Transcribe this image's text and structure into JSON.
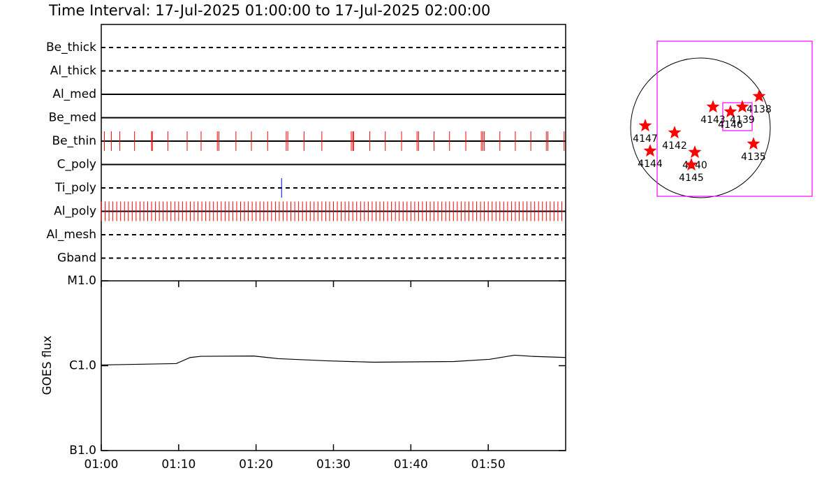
{
  "chart_data": [
    {
      "type": "timeline",
      "title": "Time Interval: 17-Jul-2025 01:00:00 to 17-Jul-2025 02:00:00",
      "xlim": [
        0,
        60
      ],
      "categories": [
        "Be_thick",
        "Al_thick",
        "Al_med",
        "Be_med",
        "Be_thin",
        "C_poly",
        "Ti_poly",
        "Al_poly",
        "Al_mesh",
        "Gband"
      ],
      "line_styles": [
        "dashed",
        "dashed",
        "solid",
        "solid",
        "solid",
        "solid",
        "dashed",
        "solid",
        "dashed",
        "dashed"
      ],
      "series": [
        {
          "name": "Be_thin",
          "color": "#ff0000",
          "x": [
            0.4,
            1.3,
            2.4,
            4.3,
            6.5,
            6.6,
            8.6,
            11.1,
            12.9,
            15.0,
            15.2,
            17.4,
            19.4,
            21.5,
            23.9,
            24.1,
            26.2,
            28.5,
            32.3,
            32.5,
            32.6,
            34.7,
            36.7,
            38.8,
            40.8,
            41.0,
            43.0,
            45.0,
            47.1,
            49.1,
            49.3,
            49.5,
            51.5,
            53.5,
            55.5,
            57.5,
            57.7,
            59.8
          ]
        },
        {
          "name": "Ti_poly",
          "color": "#0000ff",
          "x": [
            23.3
          ]
        },
        {
          "name": "Al_poly",
          "color": "#ff0000",
          "x": [
            0,
            0.5,
            1,
            1.5,
            2,
            2.5,
            3,
            3.5,
            4,
            4.5,
            5,
            5.5,
            6,
            6.5,
            7,
            7.5,
            8,
            8.5,
            9,
            9.5,
            10,
            10.5,
            11,
            11.5,
            12,
            12.5,
            13,
            13.5,
            14,
            14.5,
            15,
            15.5,
            16,
            16.5,
            17,
            17.5,
            18,
            18.5,
            19,
            19.5,
            20,
            20.5,
            21,
            21.5,
            22,
            22.5,
            23,
            23.5,
            24,
            24.5,
            25,
            25.5,
            26,
            26.5,
            27,
            27.5,
            28,
            28.5,
            29,
            29.5,
            30,
            30.5,
            31,
            31.5,
            32,
            32.5,
            33,
            33.5,
            34,
            34.5,
            35,
            35.5,
            36,
            36.5,
            37,
            37.5,
            38,
            38.5,
            39,
            39.5,
            40,
            40.5,
            41,
            41.5,
            42,
            42.5,
            43,
            43.5,
            44,
            44.5,
            45,
            45.5,
            46,
            46.5,
            47,
            47.5,
            48,
            48.5,
            49,
            49.5,
            50,
            50.5,
            51,
            51.5,
            52,
            52.5,
            53,
            53.5,
            54,
            54.5,
            55,
            55.5,
            56,
            56.5,
            57,
            57.5,
            58,
            58.5,
            59,
            59.5
          ]
        }
      ]
    },
    {
      "type": "line",
      "ylabel": "GOES flux",
      "xlim": [
        0,
        60
      ],
      "xticks": [
        {
          "value": 0,
          "label": "01:00"
        },
        {
          "value": 10,
          "label": "01:10"
        },
        {
          "value": 20,
          "label": "01:20"
        },
        {
          "value": 30,
          "label": "01:30"
        },
        {
          "value": 40,
          "label": "01:40"
        },
        {
          "value": 50,
          "label": "01:50"
        }
      ],
      "ylim": [
        1e-07,
        1e-05
      ],
      "log_y": true,
      "yticks": [
        {
          "value": 1e-07,
          "label": "B1.0"
        },
        {
          "value": 1e-06,
          "label": "C1.0"
        },
        {
          "value": 1e-05,
          "label": "M1.0"
        }
      ],
      "series": [
        {
          "name": "GOES",
          "color": "#000000",
          "x": [
            0,
            9.7,
            11.5,
            12.9,
            19.7,
            22.9,
            29.3,
            35.2,
            45.6,
            50.2,
            53.4,
            55.6,
            60
          ],
          "values": [
            1.02e-06,
            1.06e-06,
            1.25e-06,
            1.29e-06,
            1.3e-06,
            1.21e-06,
            1.14e-06,
            1.1e-06,
            1.12e-06,
            1.19e-06,
            1.33e-06,
            1.29e-06,
            1.25e-06
          ]
        }
      ]
    },
    {
      "type": "map",
      "color": "#ff0000",
      "box_color": "#ff00ff",
      "boxes": [
        {
          "x": [
            -0.62,
            1.6
          ],
          "y": [
            -0.98,
            1.24
          ]
        },
        {
          "x": [
            0.32,
            0.74
          ],
          "y": [
            -0.04,
            0.36
          ]
        }
      ],
      "labels": [
        "4147",
        "4144",
        "4142",
        "4140",
        "4145",
        "4143",
        "4146",
        "4139",
        "4138",
        "4135"
      ],
      "x": [
        -0.79,
        -0.72,
        -0.37,
        -0.08,
        -0.13,
        0.18,
        0.43,
        0.6,
        0.84,
        0.76
      ],
      "y": [
        0.03,
        -0.33,
        -0.07,
        -0.35,
        -0.53,
        0.3,
        0.23,
        0.3,
        0.45,
        -0.23
      ]
    }
  ]
}
